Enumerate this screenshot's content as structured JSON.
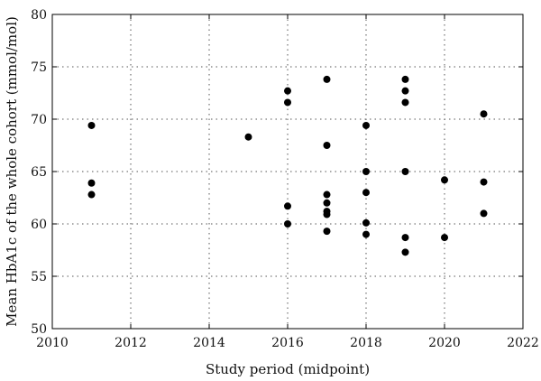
{
  "chart_data": {
    "type": "scatter",
    "title": "",
    "xlabel": "Study period (midpoint)",
    "ylabel": "Mean HbA1c of the whole cohort (mmol/mol)",
    "xlim": [
      2010,
      2022
    ],
    "ylim": [
      50,
      80
    ],
    "xticks": [
      2010,
      2012,
      2014,
      2016,
      2018,
      2020,
      2022
    ],
    "yticks": [
      50,
      55,
      60,
      65,
      70,
      75,
      80
    ],
    "grid": true,
    "marker_color": "#000000",
    "points": [
      {
        "x": 2011,
        "y": 69.4
      },
      {
        "x": 2011,
        "y": 63.9
      },
      {
        "x": 2011,
        "y": 62.8
      },
      {
        "x": 2015,
        "y": 68.3
      },
      {
        "x": 2016,
        "y": 72.7
      },
      {
        "x": 2016,
        "y": 71.6
      },
      {
        "x": 2016,
        "y": 61.7
      },
      {
        "x": 2016,
        "y": 60.0
      },
      {
        "x": 2017,
        "y": 73.8
      },
      {
        "x": 2017,
        "y": 67.5
      },
      {
        "x": 2017,
        "y": 62.8
      },
      {
        "x": 2017,
        "y": 62.0
      },
      {
        "x": 2017,
        "y": 61.2
      },
      {
        "x": 2017,
        "y": 60.9
      },
      {
        "x": 2017,
        "y": 59.3
      },
      {
        "x": 2018,
        "y": 69.4
      },
      {
        "x": 2018,
        "y": 65.0
      },
      {
        "x": 2018,
        "y": 63.0
      },
      {
        "x": 2018,
        "y": 60.1
      },
      {
        "x": 2018,
        "y": 59.0
      },
      {
        "x": 2019,
        "y": 73.8
      },
      {
        "x": 2019,
        "y": 72.7
      },
      {
        "x": 2019,
        "y": 71.6
      },
      {
        "x": 2019,
        "y": 65.0
      },
      {
        "x": 2019,
        "y": 58.7
      },
      {
        "x": 2019,
        "y": 57.3
      },
      {
        "x": 2020,
        "y": 64.2
      },
      {
        "x": 2020,
        "y": 58.7
      },
      {
        "x": 2021,
        "y": 70.5
      },
      {
        "x": 2021,
        "y": 64.0
      },
      {
        "x": 2021,
        "y": 61.0
      }
    ]
  }
}
